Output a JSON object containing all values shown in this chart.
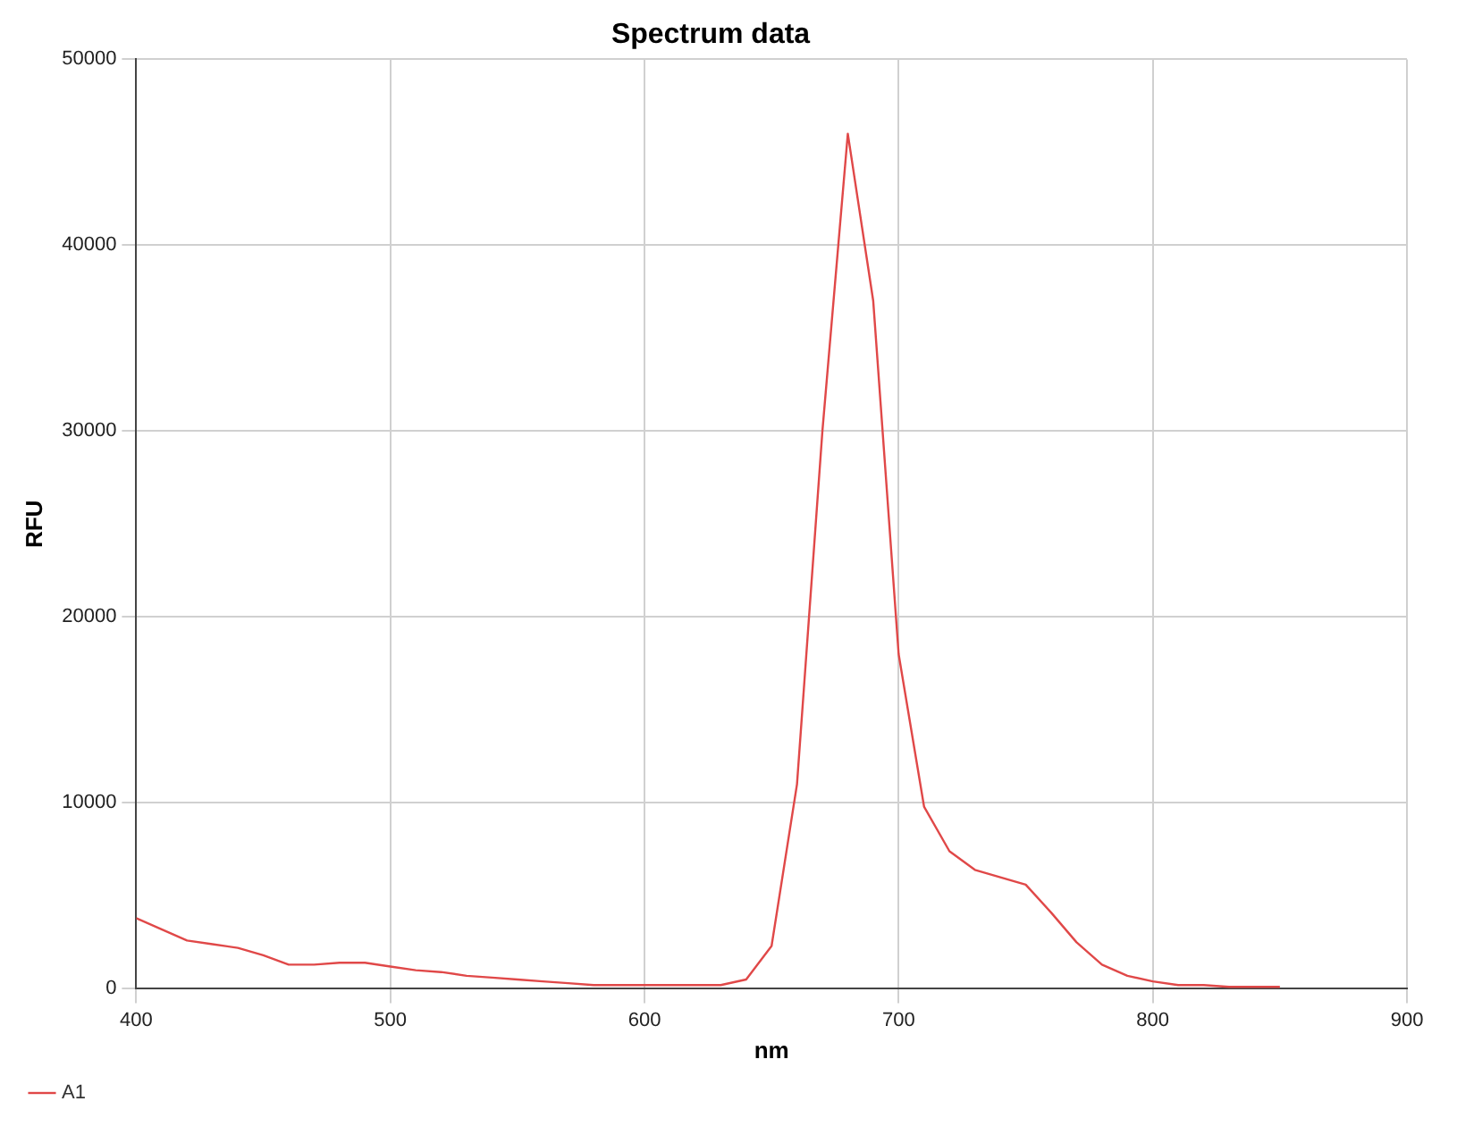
{
  "chart_data": {
    "type": "line",
    "title": "Spectrum data",
    "xlabel": "nm",
    "ylabel": "RFU",
    "x": [
      400,
      410,
      420,
      430,
      440,
      450,
      460,
      470,
      480,
      490,
      500,
      510,
      520,
      530,
      540,
      550,
      560,
      570,
      580,
      590,
      600,
      610,
      620,
      630,
      640,
      650,
      660,
      670,
      680,
      690,
      700,
      710,
      720,
      730,
      740,
      750,
      760,
      770,
      780,
      790,
      800,
      810,
      820,
      830,
      840,
      850
    ],
    "series": [
      {
        "name": "A1",
        "color": "#e04848",
        "values": [
          3800,
          3200,
          2600,
          2400,
          2200,
          1800,
          1300,
          1300,
          1400,
          1400,
          1200,
          1000,
          900,
          700,
          600,
          500,
          400,
          300,
          200,
          200,
          200,
          200,
          200,
          200,
          500,
          2300,
          11000,
          30000,
          46000,
          37000,
          18000,
          9800,
          7400,
          6400,
          6000,
          5600,
          4100,
          2500,
          1300,
          700,
          400,
          200,
          200,
          100,
          100,
          100
        ]
      }
    ],
    "xlim": [
      400,
      900
    ],
    "xticks": [
      400,
      500,
      600,
      700,
      800,
      900
    ],
    "ylim": [
      0,
      50000
    ],
    "yticks": [
      0,
      10000,
      20000,
      30000,
      40000,
      50000
    ],
    "grid": true,
    "legend": "bottom left",
    "marker": "none",
    "line_style": "solid"
  }
}
